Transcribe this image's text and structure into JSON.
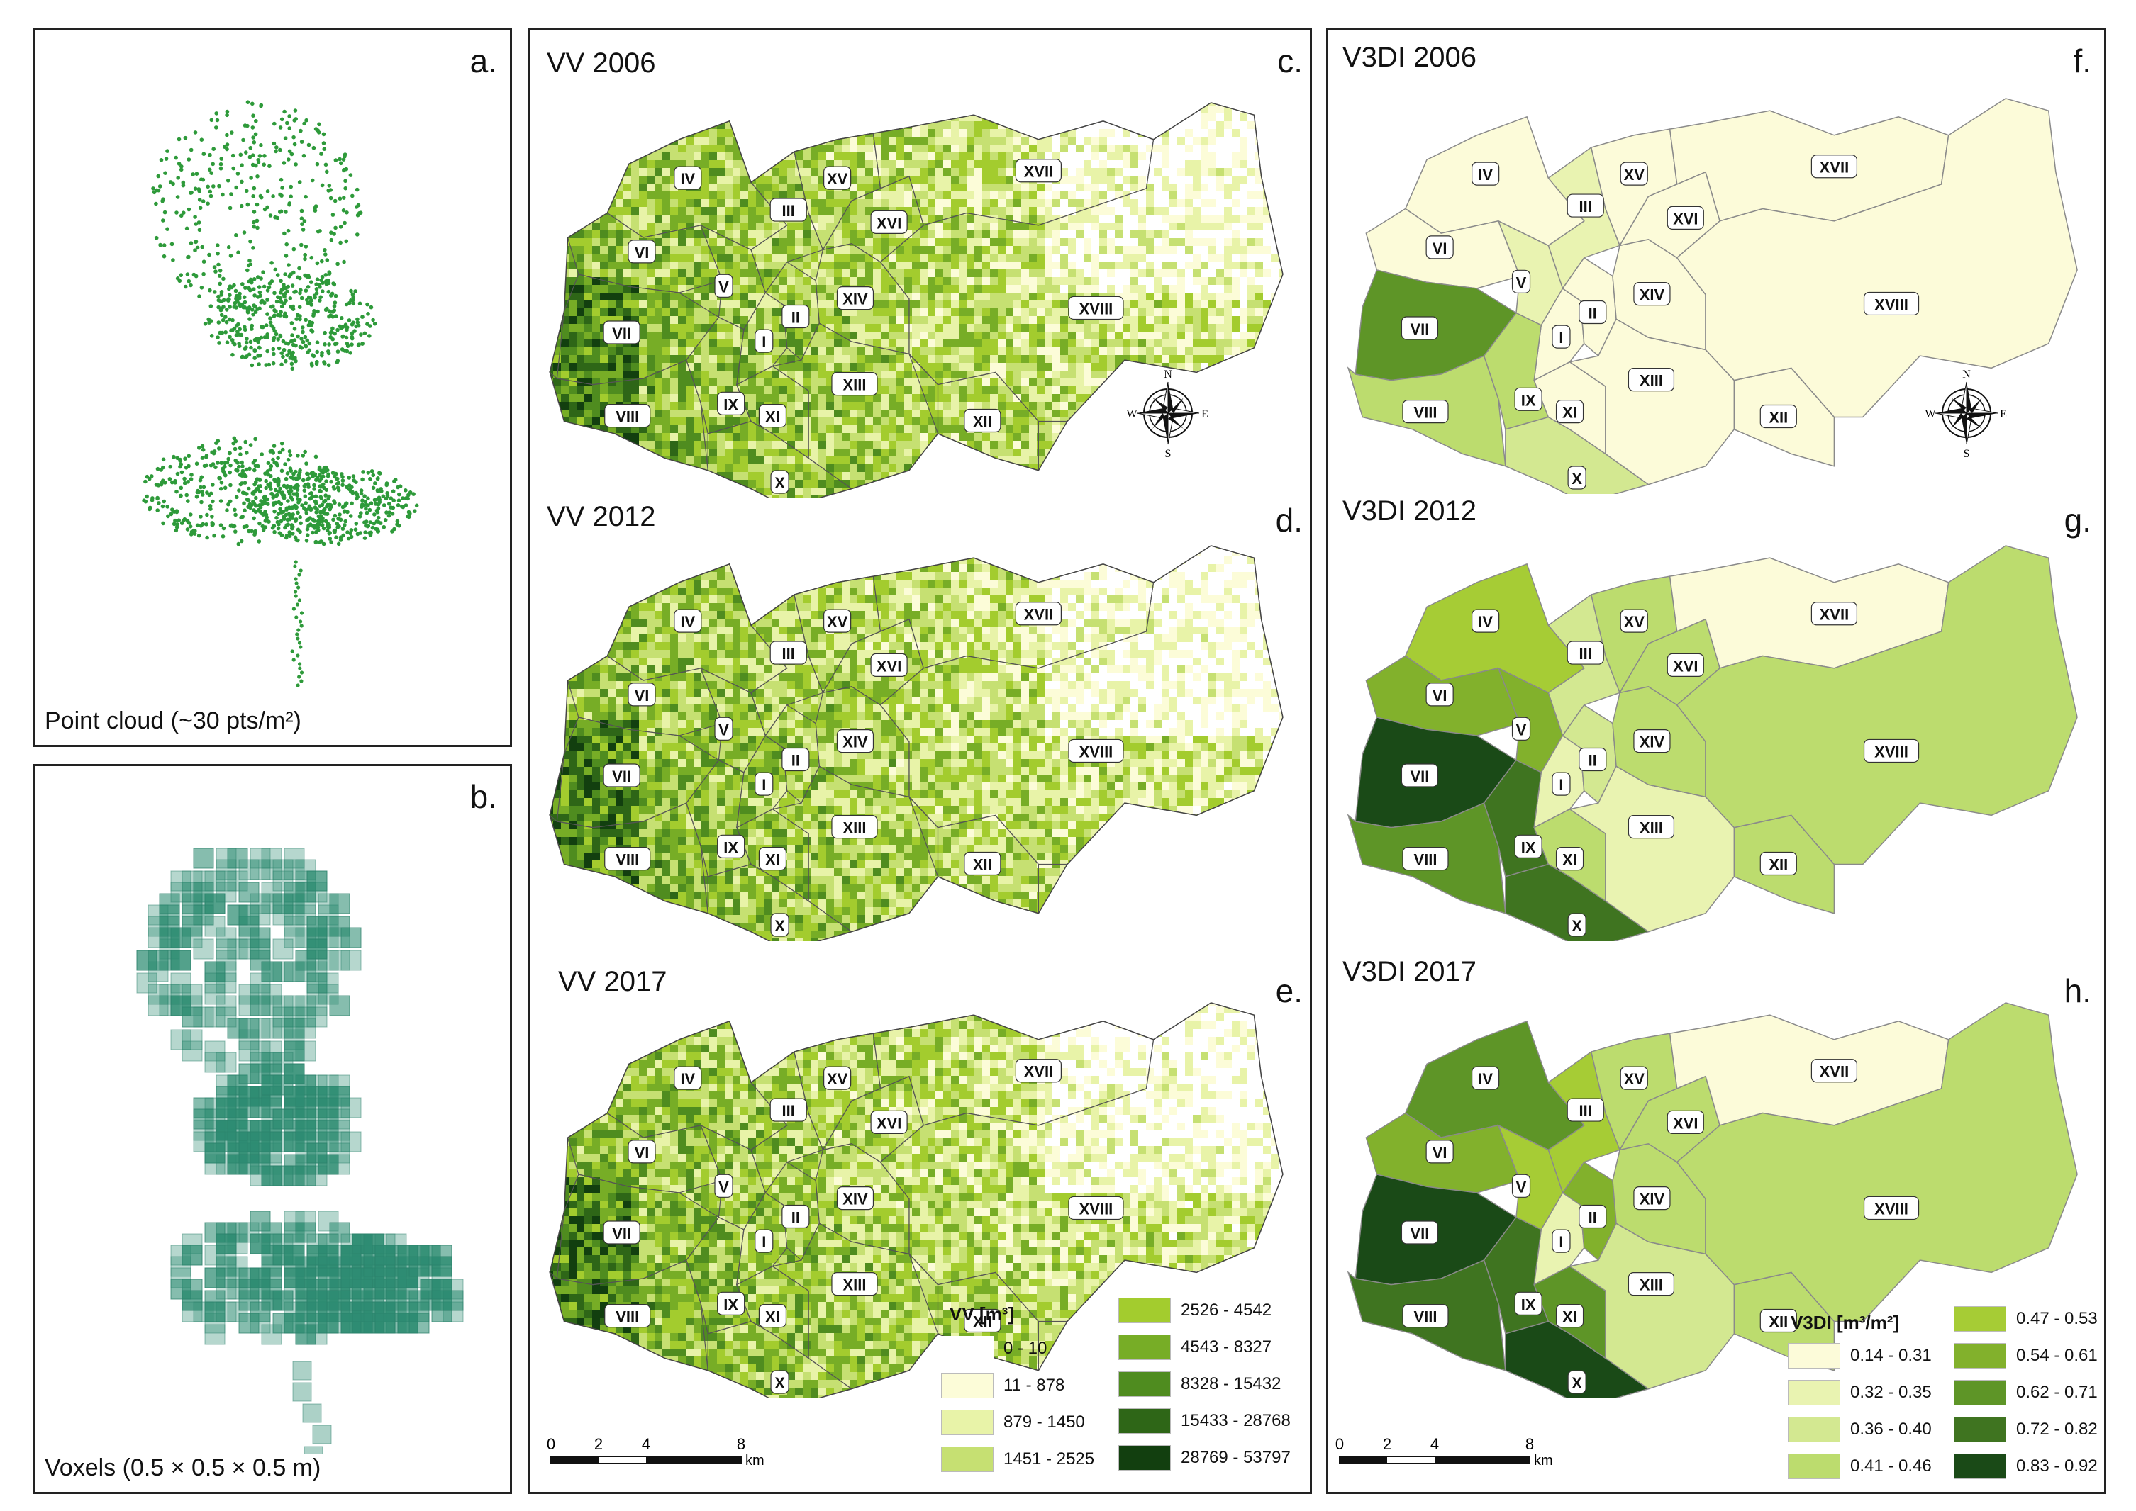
{
  "panels": {
    "a": {
      "letter": "a.",
      "caption": "Point cloud (~30 pts/m²)"
    },
    "b": {
      "letter": "b.",
      "caption": "Voxels (0.5 × 0.5 × 0.5 m)"
    },
    "c": {
      "letter": "c.",
      "title": "VV 2006"
    },
    "d": {
      "letter": "d.",
      "title": "VV 2012"
    },
    "e": {
      "letter": "e.",
      "title": "VV 2017"
    },
    "f": {
      "letter": "f.",
      "title": "V3DI 2006"
    },
    "g": {
      "letter": "g.",
      "title": "V3DI 2012"
    },
    "h": {
      "letter": "h.",
      "title": "V3DI 2017"
    }
  },
  "districts": [
    "I",
    "II",
    "III",
    "IV",
    "V",
    "VI",
    "VII",
    "VIII",
    "IX",
    "X",
    "XI",
    "XII",
    "XIII",
    "XIV",
    "XV",
    "XVI",
    "XVII",
    "XVIII"
  ],
  "compass": {
    "n": "N",
    "s": "S",
    "e": "E",
    "w": "W"
  },
  "scale": {
    "ticks": [
      "0",
      "2",
      "4",
      "8"
    ],
    "unit": "km"
  },
  "vv_legend": {
    "title": "VV [m³]",
    "classes": [
      {
        "label": "0 - 10",
        "color": "#ffffff"
      },
      {
        "label": "11 - 878",
        "color": "#fcfcd8"
      },
      {
        "label": "879 - 1450",
        "color": "#e8f3a8"
      },
      {
        "label": "1451 - 2525",
        "color": "#c6e072"
      },
      {
        "label": "2526 - 4542",
        "color": "#a3cc2e"
      },
      {
        "label": "4543 - 8327",
        "color": "#77ad26"
      },
      {
        "label": "8328 - 15432",
        "color": "#4f8c1f"
      },
      {
        "label": "15433 - 28768",
        "color": "#2e6617"
      },
      {
        "label": "28769 - 53797",
        "color": "#123f0f"
      }
    ]
  },
  "v3di_legend": {
    "title": "V3DI [m³/m²]",
    "classes": [
      {
        "label": "0.14 - 0.31",
        "color": "#fcfbd9"
      },
      {
        "label": "0.32 - 0.35",
        "color": "#e9f3b1"
      },
      {
        "label": "0.36 - 0.40",
        "color": "#d3e891"
      },
      {
        "label": "0.41 - 0.46",
        "color": "#bcdc6e"
      },
      {
        "label": "0.47 - 0.53",
        "color": "#a6cc35"
      },
      {
        "label": "0.54 - 0.61",
        "color": "#82b12c"
      },
      {
        "label": "0.62 - 0.71",
        "color": "#5e9527"
      },
      {
        "label": "0.72 - 0.82",
        "color": "#3f7420"
      },
      {
        "label": "0.83 - 0.92",
        "color": "#1a4a17"
      }
    ]
  },
  "v3di_values": {
    "f": {
      "I": 0,
      "II": 0,
      "III": 1,
      "IV": 0,
      "V": 1,
      "VI": 0,
      "VII": 6,
      "VIII": 3,
      "IX": 3,
      "X": 2,
      "XI": 0,
      "XII": 0,
      "XIII": 0,
      "XIV": 0,
      "XV": 0,
      "XVI": 0,
      "XVII": 0,
      "XVIII": 0
    },
    "g": {
      "I": 1,
      "II": 2,
      "III": 2,
      "IV": 4,
      "V": 5,
      "VI": 5,
      "VII": 8,
      "VIII": 6,
      "IX": 7,
      "X": 7,
      "XI": 3,
      "XII": 3,
      "XIII": 1,
      "XIV": 3,
      "XV": 3,
      "XVI": 3,
      "XVII": 0,
      "XVIII": 3
    },
    "h": {
      "I": 1,
      "II": 5,
      "III": 4,
      "IV": 6,
      "V": 4,
      "VI": 5,
      "VII": 8,
      "VIII": 7,
      "IX": 7,
      "X": 8,
      "XI": 6,
      "XII": 3,
      "XIII": 2,
      "XIV": 3,
      "XV": 3,
      "XVI": 3,
      "XVII": 0,
      "XVIII": 3
    }
  }
}
